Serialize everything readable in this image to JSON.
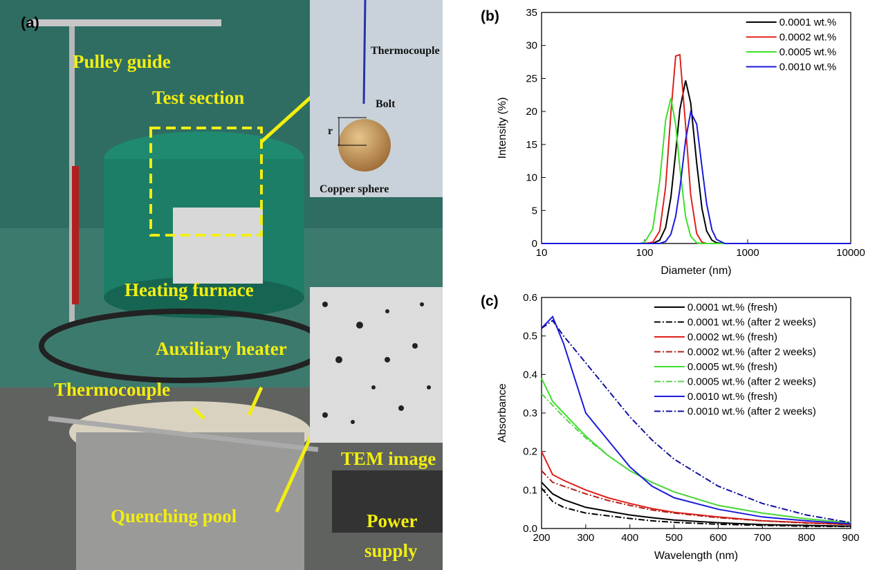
{
  "photo": {
    "panel_label": "(a)",
    "labels": [
      "Pulley guide",
      "Test section",
      "Heating furnace",
      "Auxiliary heater",
      "Thermocouple",
      "Quenching pool",
      "TEM image",
      "Power",
      "supply"
    ],
    "inset": {
      "thermocouple": "Thermocouple",
      "bolt": "Bolt",
      "radius": "r",
      "sphere": "Copper sphere"
    }
  },
  "chart_data": [
    {
      "type": "line",
      "panel_label": "(b)",
      "x_label": "Diameter (nm)",
      "y_label": "Intensity (%)",
      "xscale": "log",
      "xlim": [
        10,
        10000
      ],
      "xticks": [
        10,
        100,
        1000,
        10000
      ],
      "ylim": [
        0,
        35
      ],
      "yticks": [
        0,
        5,
        10,
        15,
        20,
        25,
        30,
        35
      ],
      "legend": "top-right",
      "x": [
        10,
        90,
        100,
        120,
        140,
        160,
        180,
        200,
        220,
        250,
        280,
        320,
        360,
        400,
        450,
        500,
        600,
        10000
      ],
      "series": [
        {
          "name": "0.0001 wt.%",
          "color": "#000000",
          "dash": "solid",
          "values": [
            0,
            0,
            0,
            0,
            0.5,
            2.4,
            7.0,
            13.8,
            20.3,
            24.7,
            21.3,
            12.2,
            5.3,
            1.9,
            0.5,
            0.1,
            0,
            0
          ]
        },
        {
          "name": "0.0002 wt.%",
          "color": "#e0201b",
          "dash": "solid",
          "values": [
            0,
            0,
            0,
            0.2,
            1.9,
            8.6,
            19.8,
            28.4,
            28.6,
            17.8,
            7.4,
            1.5,
            0.2,
            0,
            0,
            0,
            0,
            0
          ]
        },
        {
          "name": "0.0005 wt.%",
          "color": "#3de02b",
          "dash": "solid",
          "values": [
            0,
            0,
            0.2,
            2.2,
            9.4,
            18.7,
            22,
            18.0,
            11.4,
            4.0,
            1.1,
            0.1,
            0,
            0,
            0,
            0,
            0,
            0
          ]
        },
        {
          "name": "0.0010 wt.%",
          "color": "#1a1adb",
          "dash": "solid",
          "values": [
            0,
            0,
            0,
            0,
            0,
            0.3,
            1.4,
            4.1,
            8.3,
            15.7,
            19.9,
            18.1,
            11.6,
            6.0,
            2.1,
            0.6,
            0,
            0
          ]
        }
      ]
    },
    {
      "type": "line",
      "panel_label": "(c)",
      "x_label": "Wavelength (nm)",
      "y_label": "Absorbance",
      "xscale": "linear",
      "xlim": [
        200,
        900
      ],
      "xticks": [
        200,
        300,
        400,
        500,
        600,
        700,
        800,
        900
      ],
      "ylim": [
        0,
        0.6
      ],
      "yticks": [
        {
          "value": 0,
          "label": "0.0"
        },
        0.1,
        0.2,
        0.3,
        0.4,
        0.5,
        0.6
      ],
      "legend": "top-right",
      "x": [
        200,
        225,
        250,
        300,
        350,
        400,
        450,
        500,
        600,
        700,
        800,
        900
      ],
      "series": [
        {
          "name": "0.0001 wt.% (fresh)",
          "color": "#000000",
          "dash": "solid",
          "values": [
            0.12,
            0.09,
            0.075,
            0.055,
            0.045,
            0.035,
            0.028,
            0.022,
            0.015,
            0.01,
            0.008,
            0.006
          ]
        },
        {
          "name": "0.0001 wt.% (after 2 weeks)",
          "color": "#000000",
          "dash": "dashdot",
          "values": [
            0.105,
            0.07,
            0.055,
            0.04,
            0.033,
            0.026,
            0.02,
            0.016,
            0.011,
            0.008,
            0.006,
            0.005
          ]
        },
        {
          "name": "0.0002 wt.% (fresh)",
          "color": "#e0201b",
          "dash": "solid",
          "values": [
            0.2,
            0.14,
            0.125,
            0.1,
            0.08,
            0.065,
            0.052,
            0.042,
            0.03,
            0.02,
            0.015,
            0.01
          ]
        },
        {
          "name": "0.0002 wt.% (after 2 weeks)",
          "color": "#b0201b",
          "dash": "dashdot",
          "values": [
            0.15,
            0.12,
            0.11,
            0.09,
            0.073,
            0.06,
            0.048,
            0.04,
            0.028,
            0.02,
            0.014,
            0.01
          ]
        },
        {
          "name": "0.0005 wt.% (fresh)",
          "color": "#3de02b",
          "dash": "solid",
          "values": [
            0.39,
            0.33,
            0.3,
            0.24,
            0.19,
            0.15,
            0.12,
            0.095,
            0.06,
            0.04,
            0.025,
            0.015
          ]
        },
        {
          "name": "0.0005 wt.% (after 2 weeks)",
          "color": "#5ad04a",
          "dash": "dashdot",
          "values": [
            0.35,
            0.32,
            0.29,
            0.235,
            0.19,
            0.15,
            0.12,
            0.095,
            0.06,
            0.04,
            0.025,
            0.015
          ]
        },
        {
          "name": "0.0010 wt.% (fresh)",
          "color": "#1a1adb",
          "dash": "solid",
          "values": [
            0.52,
            0.55,
            0.48,
            0.3,
            0.23,
            0.16,
            0.11,
            0.08,
            0.05,
            0.03,
            0.02,
            0.012
          ]
        },
        {
          "name": "0.0010 wt.% (after 2 weeks)",
          "color": "#1010a0",
          "dash": "dashdot",
          "values": [
            0.52,
            0.54,
            0.5,
            0.43,
            0.36,
            0.29,
            0.23,
            0.18,
            0.11,
            0.065,
            0.035,
            0.015
          ]
        }
      ]
    }
  ]
}
